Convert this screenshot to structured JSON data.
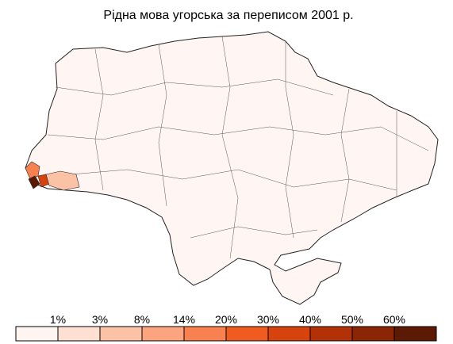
{
  "title": "Рідна мова угорська за переписом 2001 р.",
  "legend": {
    "labels": [
      "1%",
      "3%",
      "8%",
      "14%",
      "20%",
      "30%",
      "40%",
      "50%",
      "60%"
    ],
    "colors": [
      "#fff5f0",
      "#fde0d2",
      "#fcc2a6",
      "#fca47f",
      "#f98150",
      "#f05b1f",
      "#d6430d",
      "#b23107",
      "#8a2505",
      "#5c1a04"
    ]
  }
}
